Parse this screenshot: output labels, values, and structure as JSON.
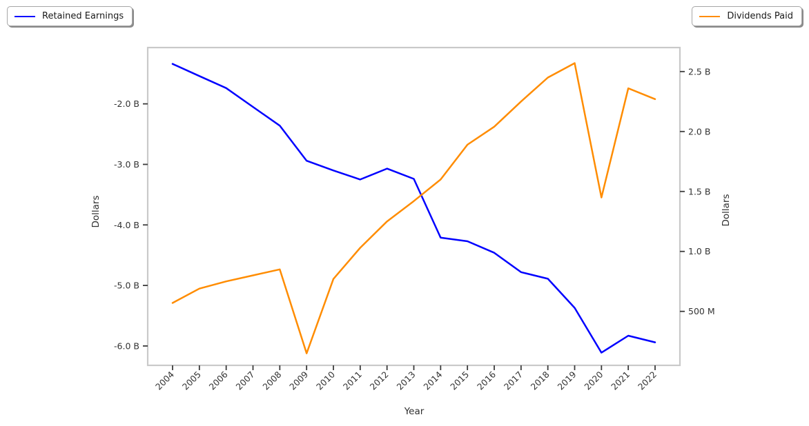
{
  "figure": {
    "background": "#ffffff",
    "frame_color": "#c9c9c9",
    "tick_color": "#3a3a3a",
    "tick_label_color": "#333333",
    "legend_left": {
      "label": "Retained Earnings",
      "color": "#0000ff"
    },
    "legend_right": {
      "label": "Dividends Paid",
      "color": "#ff8c00"
    }
  },
  "chart_data": {
    "type": "line",
    "title": "",
    "xlabel": "Year",
    "ylabel_left": "Dollars",
    "ylabel_right": "Dollars",
    "categories": [
      "2004",
      "2005",
      "2006",
      "2007",
      "2008",
      "2009",
      "2010",
      "2011",
      "2012",
      "2013",
      "2014",
      "2015",
      "2016",
      "2017",
      "2018",
      "2019",
      "2020",
      "2021",
      "2022"
    ],
    "series": [
      {
        "name": "Retained Earnings",
        "axis": "left",
        "color": "#0000ff",
        "unit": "billions of dollars",
        "values": [
          -1.34,
          -1.54,
          -1.74,
          -2.05,
          -2.36,
          -2.94,
          -3.1,
          -3.25,
          -3.07,
          -3.24,
          -4.21,
          -4.27,
          -4.46,
          -4.78,
          -4.89,
          -5.37,
          -6.11,
          -5.83,
          -5.94
        ]
      },
      {
        "name": "Dividends Paid",
        "axis": "right",
        "color": "#ff8c00",
        "unit": "billions of dollars",
        "values": [
          0.57,
          0.69,
          0.75,
          0.8,
          0.85,
          0.15,
          0.77,
          1.03,
          1.25,
          1.42,
          1.6,
          1.89,
          2.04,
          2.25,
          2.45,
          2.57,
          1.45,
          2.36,
          2.27
        ]
      }
    ],
    "left_axis": {
      "ticks": [
        -2.0,
        -3.0,
        -4.0,
        -5.0,
        -6.0
      ],
      "tick_labels": [
        "-2.0 B",
        "-3.0 B",
        "-4.0 B",
        "-5.0 B",
        "-6.0 B"
      ],
      "range": [
        -6.32,
        -1.07
      ]
    },
    "right_axis": {
      "ticks": [
        2.5,
        2.0,
        1.5,
        1.0,
        0.5
      ],
      "tick_labels": [
        "2.5 B",
        "2.0 B",
        "1.5 B",
        "1.0 B",
        "500 M"
      ],
      "range": [
        0.05,
        2.7
      ]
    },
    "grid": false,
    "legend_position": "outside-top-corners",
    "x_tick_rotation": 45
  }
}
